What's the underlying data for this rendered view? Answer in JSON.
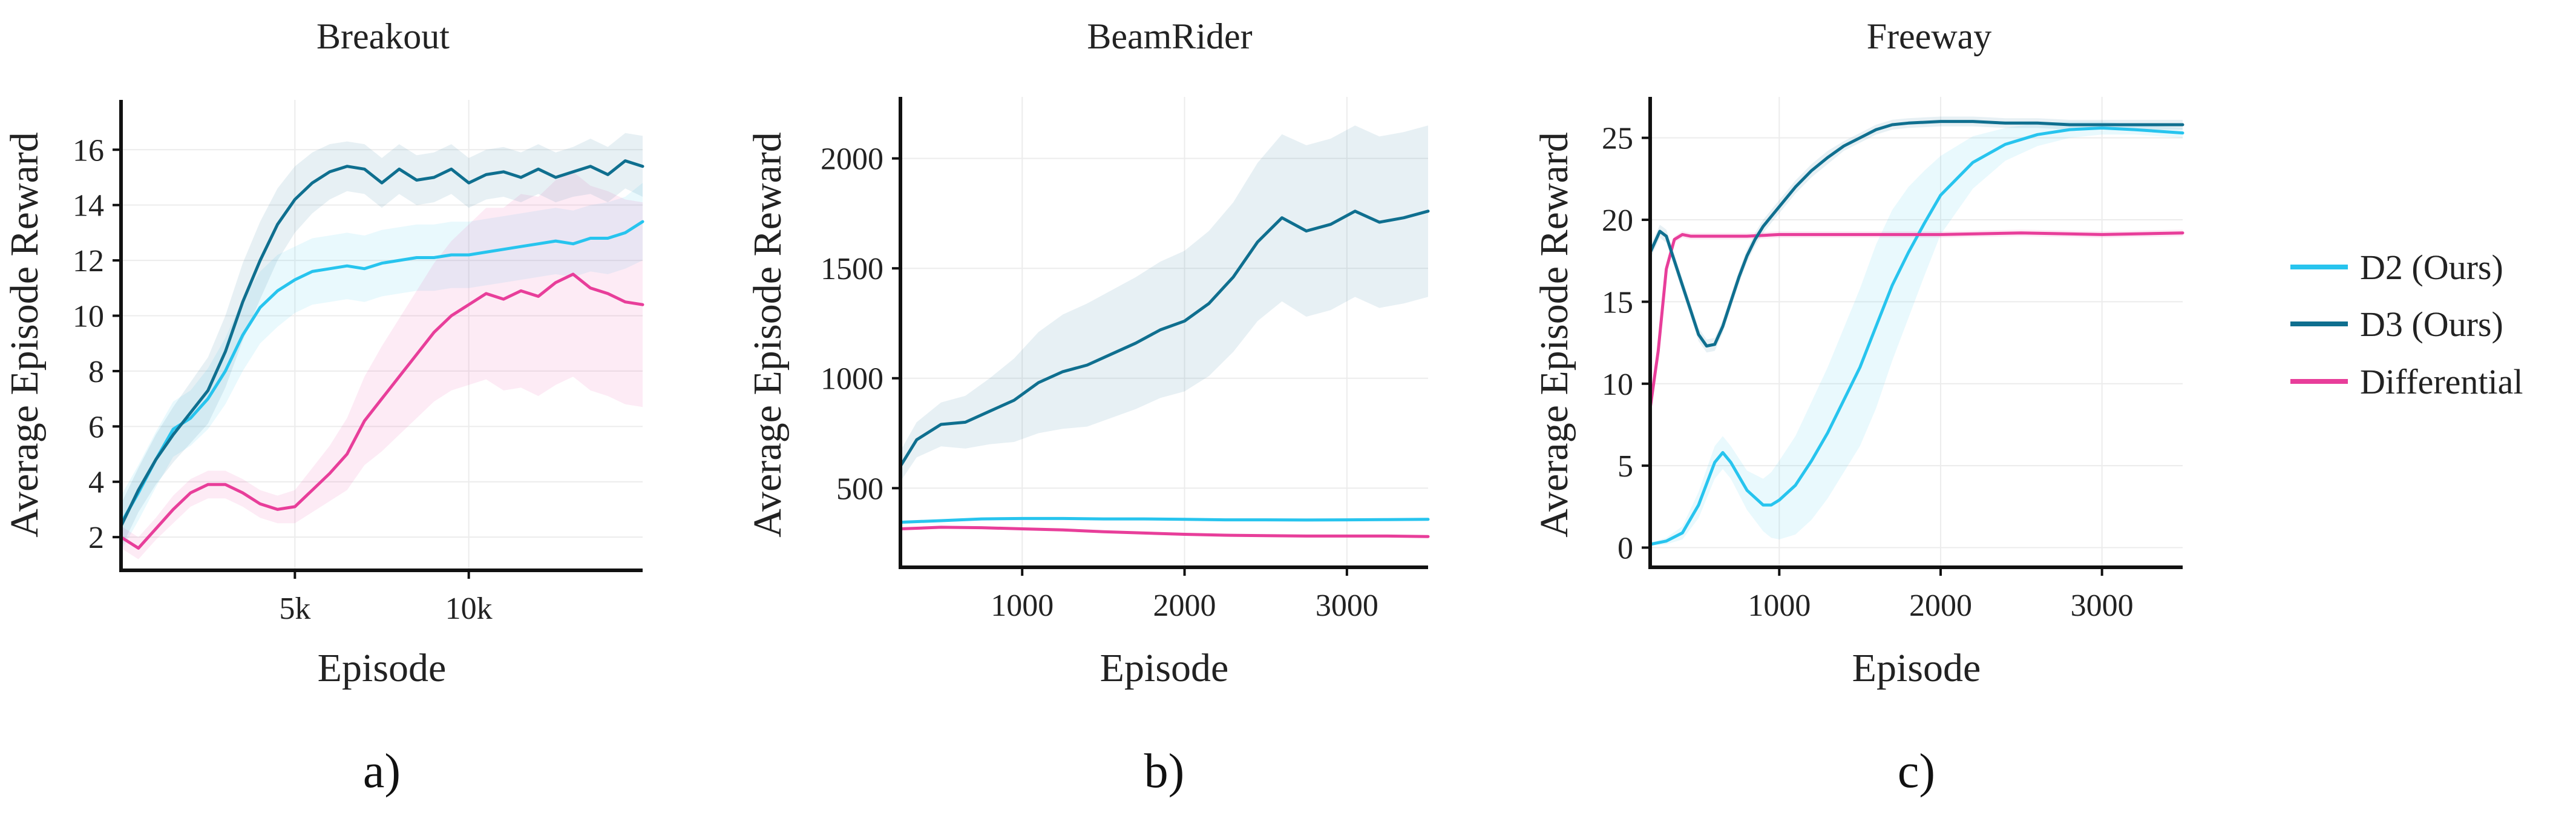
{
  "colors": {
    "d2": "#27c4ee",
    "d3": "#0f6f8f",
    "diff": "#e83e9a"
  },
  "legend": [
    {
      "key": "d2",
      "label": "D2 (Ours)"
    },
    {
      "key": "d3",
      "label": "D3 (Ours)"
    },
    {
      "key": "diff",
      "label": "Differential"
    }
  ],
  "chart_data": [
    {
      "type": "line",
      "title": "Breakout",
      "panel_label": "a)",
      "xlabel": "Episode",
      "ylabel": "Average Episode Reward",
      "xlim": [
        0,
        15000
      ],
      "ylim": [
        0.8,
        17.8
      ],
      "xticks": [
        5000,
        10000
      ],
      "xtick_labels": [
        "5k",
        "10k"
      ],
      "yticks": [
        2,
        4,
        6,
        8,
        10,
        12,
        14,
        16
      ],
      "ytick_labels": [
        "2",
        "4",
        "6",
        "8",
        "10",
        "12",
        "14",
        "16"
      ],
      "series": [
        {
          "name": "D2 (Ours)",
          "key": "d2",
          "x": [
            0,
            500,
            1000,
            1500,
            2000,
            2500,
            3000,
            3500,
            4000,
            4500,
            5000,
            5500,
            6000,
            6500,
            7000,
            7500,
            8000,
            8500,
            9000,
            9500,
            10000,
            10500,
            11000,
            11500,
            12000,
            12500,
            13000,
            13500,
            14000,
            14500,
            15000
          ],
          "y": [
            2.5,
            3.6,
            4.8,
            5.9,
            6.3,
            7.0,
            8.0,
            9.3,
            10.3,
            10.9,
            11.3,
            11.6,
            11.7,
            11.8,
            11.7,
            11.9,
            12.0,
            12.1,
            12.1,
            12.2,
            12.2,
            12.3,
            12.4,
            12.5,
            12.6,
            12.7,
            12.6,
            12.8,
            12.8,
            13.0,
            13.4
          ],
          "band": [
            1.0,
            1.0,
            1.0,
            1.0,
            1.0,
            1.1,
            1.2,
            1.3,
            1.3,
            1.3,
            1.2,
            1.2,
            1.2,
            1.2,
            1.2,
            1.2,
            1.2,
            1.2,
            1.2,
            1.2,
            1.2,
            1.2,
            1.2,
            1.2,
            1.2,
            1.2,
            1.2,
            1.2,
            1.3,
            1.3,
            1.4
          ]
        },
        {
          "name": "D3 (Ours)",
          "key": "d3",
          "x": [
            0,
            500,
            1000,
            1500,
            2000,
            2500,
            3000,
            3500,
            4000,
            4500,
            5000,
            5500,
            6000,
            6500,
            7000,
            7500,
            8000,
            8500,
            9000,
            9500,
            10000,
            10500,
            11000,
            11500,
            12000,
            12500,
            13000,
            13500,
            14000,
            14500,
            15000
          ],
          "y": [
            2.4,
            3.7,
            4.8,
            5.7,
            6.5,
            7.3,
            8.7,
            10.5,
            12.0,
            13.3,
            14.2,
            14.8,
            15.2,
            15.4,
            15.3,
            14.8,
            15.3,
            14.9,
            15.0,
            15.3,
            14.8,
            15.1,
            15.2,
            15.0,
            15.3,
            15.0,
            15.2,
            15.4,
            15.1,
            15.6,
            15.4
          ],
          "band": [
            0.8,
            0.8,
            0.9,
            1.0,
            1.1,
            1.2,
            1.3,
            1.4,
            1.4,
            1.3,
            1.2,
            1.1,
            1.0,
            0.9,
            0.9,
            0.9,
            0.9,
            0.9,
            0.9,
            0.9,
            0.9,
            0.9,
            0.9,
            0.9,
            0.9,
            0.9,
            0.9,
            1.0,
            1.0,
            1.0,
            1.1
          ]
        },
        {
          "name": "Differential",
          "key": "diff",
          "x": [
            0,
            500,
            1000,
            1500,
            2000,
            2500,
            3000,
            3500,
            4000,
            4500,
            5000,
            5500,
            6000,
            6500,
            7000,
            7500,
            8000,
            8500,
            9000,
            9500,
            10000,
            10500,
            11000,
            11500,
            12000,
            12500,
            13000,
            13500,
            14000,
            14500,
            15000
          ],
          "y": [
            2.0,
            1.6,
            2.3,
            3.0,
            3.6,
            3.9,
            3.9,
            3.6,
            3.2,
            3.0,
            3.1,
            3.7,
            4.3,
            5.0,
            6.2,
            7.0,
            7.8,
            8.6,
            9.4,
            10.0,
            10.4,
            10.8,
            10.6,
            10.9,
            10.7,
            11.2,
            11.5,
            11.0,
            10.8,
            10.5,
            10.4
          ],
          "band": [
            0.4,
            0.4,
            0.4,
            0.5,
            0.5,
            0.5,
            0.5,
            0.5,
            0.5,
            0.5,
            0.6,
            0.8,
            1.0,
            1.3,
            1.6,
            1.9,
            2.1,
            2.3,
            2.5,
            2.7,
            2.9,
            3.1,
            3.3,
            3.5,
            3.6,
            3.7,
            3.7,
            3.7,
            3.7,
            3.7,
            3.7
          ]
        }
      ]
    },
    {
      "type": "line",
      "title": "BeamRider",
      "panel_label": "b)",
      "xlabel": "Episode",
      "ylabel": "Average Episode Reward",
      "xlim": [
        250,
        3500
      ],
      "ylim": [
        140,
        2280
      ],
      "xticks": [
        1000,
        2000,
        3000
      ],
      "xtick_labels": [
        "1000",
        "2000",
        "3000"
      ],
      "yticks": [
        500,
        1000,
        1500,
        2000
      ],
      "ytick_labels": [
        "500",
        "1000",
        "1500",
        "2000"
      ],
      "series": [
        {
          "name": "D2 (Ours)",
          "key": "d2",
          "x": [
            250,
            500,
            750,
            1000,
            1250,
            1500,
            1750,
            2000,
            2250,
            2500,
            2750,
            3000,
            3250,
            3500
          ],
          "y": [
            345,
            352,
            360,
            362,
            362,
            360,
            360,
            358,
            356,
            356,
            355,
            356,
            357,
            358
          ],
          "band": [
            6,
            6,
            6,
            6,
            6,
            6,
            6,
            6,
            6,
            6,
            6,
            6,
            6,
            6
          ]
        },
        {
          "name": "D3 (Ours)",
          "key": "d3",
          "x": [
            250,
            350,
            500,
            650,
            800,
            950,
            1100,
            1250,
            1400,
            1550,
            1700,
            1850,
            2000,
            2150,
            2300,
            2450,
            2600,
            2750,
            2900,
            3050,
            3200,
            3350,
            3500
          ],
          "y": [
            600,
            720,
            790,
            800,
            850,
            900,
            980,
            1030,
            1060,
            1110,
            1160,
            1220,
            1260,
            1340,
            1460,
            1620,
            1730,
            1670,
            1700,
            1760,
            1710,
            1730,
            1760
          ],
          "band": [
            70,
            80,
            100,
            120,
            150,
            190,
            230,
            260,
            280,
            290,
            300,
            310,
            320,
            330,
            340,
            360,
            380,
            390,
            390,
            390,
            390,
            390,
            390
          ]
        },
        {
          "name": "Differential",
          "key": "diff",
          "x": [
            250,
            500,
            750,
            1000,
            1250,
            1500,
            1750,
            2000,
            2250,
            2500,
            2750,
            3000,
            3250,
            3500
          ],
          "y": [
            315,
            322,
            320,
            315,
            310,
            302,
            296,
            290,
            286,
            284,
            282,
            282,
            282,
            280
          ],
          "band": [
            5,
            5,
            5,
            5,
            5,
            5,
            5,
            5,
            5,
            5,
            5,
            5,
            5,
            5
          ]
        }
      ]
    },
    {
      "type": "line",
      "title": "Freeway",
      "panel_label": "c)",
      "xlabel": "Episode",
      "ylabel": "Average Episode Reward",
      "xlim": [
        200,
        3500
      ],
      "ylim": [
        -1.2,
        27.5
      ],
      "xticks": [
        1000,
        2000,
        3000
      ],
      "xtick_labels": [
        "1000",
        "2000",
        "3000"
      ],
      "yticks": [
        0,
        5,
        10,
        15,
        20,
        25
      ],
      "ytick_labels": [
        "0",
        "5",
        "10",
        "15",
        "20",
        "25"
      ],
      "series": [
        {
          "name": "D2 (Ours)",
          "key": "d2",
          "x": [
            200,
            300,
            400,
            500,
            600,
            650,
            700,
            800,
            900,
            950,
            1000,
            1100,
            1200,
            1300,
            1400,
            1500,
            1600,
            1700,
            1800,
            1900,
            2000,
            2200,
            2400,
            2600,
            2800,
            3000,
            3200,
            3500
          ],
          "y": [
            0.2,
            0.4,
            0.9,
            2.6,
            5.2,
            5.8,
            5.2,
            3.5,
            2.6,
            2.6,
            2.9,
            3.8,
            5.3,
            7.0,
            9.0,
            11.0,
            13.5,
            16.0,
            18.0,
            19.8,
            21.5,
            23.5,
            24.6,
            25.2,
            25.5,
            25.6,
            25.5,
            25.3
          ],
          "band": [
            0.1,
            0.2,
            0.4,
            0.8,
            1.0,
            1.0,
            1.0,
            1.2,
            1.6,
            2.0,
            2.4,
            3.0,
            3.6,
            4.0,
            4.4,
            4.8,
            5.0,
            4.6,
            4.0,
            3.2,
            2.4,
            1.6,
            1.0,
            0.7,
            0.5,
            0.4,
            0.3,
            0.3
          ]
        },
        {
          "name": "D3 (Ours)",
          "key": "d3",
          "x": [
            200,
            260,
            300,
            350,
            400,
            450,
            500,
            550,
            600,
            650,
            700,
            750,
            800,
            850,
            900,
            1000,
            1100,
            1200,
            1300,
            1400,
            1500,
            1600,
            1700,
            1800,
            2000,
            2200,
            2400,
            2600,
            2800,
            3000,
            3200,
            3500
          ],
          "y": [
            18.0,
            19.3,
            19.0,
            17.5,
            16.0,
            14.5,
            13.0,
            12.3,
            12.4,
            13.5,
            15.0,
            16.5,
            17.8,
            18.8,
            19.6,
            20.8,
            22.0,
            23.0,
            23.8,
            24.5,
            25.0,
            25.5,
            25.8,
            25.9,
            26.0,
            26.0,
            25.9,
            25.9,
            25.8,
            25.8,
            25.8,
            25.8
          ],
          "band": [
            0.4,
            0.4,
            0.4,
            0.4,
            0.4,
            0.4,
            0.4,
            0.4,
            0.4,
            0.4,
            0.4,
            0.4,
            0.4,
            0.4,
            0.4,
            0.4,
            0.4,
            0.4,
            0.4,
            0.3,
            0.3,
            0.3,
            0.3,
            0.3,
            0.3,
            0.3,
            0.3,
            0.3,
            0.3,
            0.3,
            0.3,
            0.3
          ]
        },
        {
          "name": "Differential",
          "key": "diff",
          "x": [
            200,
            250,
            300,
            350,
            400,
            450,
            500,
            600,
            800,
            1000,
            1500,
            2000,
            2500,
            3000,
            3500
          ],
          "y": [
            8.5,
            12.0,
            17.0,
            18.8,
            19.1,
            19.0,
            19.0,
            19.0,
            19.0,
            19.1,
            19.1,
            19.1,
            19.2,
            19.1,
            19.2
          ],
          "band": [
            0.2,
            0.2,
            0.2,
            0.2,
            0.2,
            0.2,
            0.2,
            0.2,
            0.2,
            0.2,
            0.2,
            0.2,
            0.2,
            0.2,
            0.2
          ]
        }
      ]
    }
  ]
}
